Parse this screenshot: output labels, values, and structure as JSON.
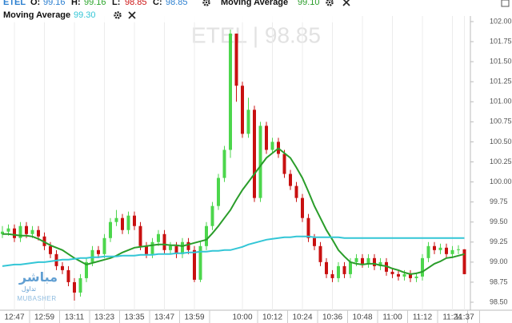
{
  "chart_data": {
    "type": "candlestick",
    "header": {
      "symbol": "ETEL",
      "ohlc": [
        {
          "label": "O:",
          "value": 99.16,
          "color": "#2b7fd0"
        },
        {
          "label": "H:",
          "value": 99.16,
          "color": "#2aa52a"
        },
        {
          "label": "L:",
          "value": 98.85,
          "color": "#cc1111"
        },
        {
          "label": "C:",
          "value": 98.85,
          "color": "#2b7fd0"
        }
      ]
    },
    "watermark": "ETEL | 98.85",
    "logo": {
      "arabic": "مباشر",
      "arabic_sub": "تداول",
      "latin": "MUBASHER"
    },
    "categories": [
      null,
      null,
      "12:47",
      null,
      null,
      null,
      null,
      "12:59",
      null,
      null,
      null,
      null,
      "13:11",
      null,
      null,
      null,
      null,
      "13:23",
      null,
      null,
      null,
      null,
      "13:35",
      null,
      null,
      null,
      null,
      "13:47",
      null,
      null,
      null,
      null,
      "13:59",
      null,
      null,
      null,
      null,
      null,
      null,
      null,
      "10:00",
      null,
      null,
      null,
      null,
      "10:12",
      null,
      null,
      null,
      null,
      "10:24",
      null,
      null,
      null,
      null,
      "10:36",
      null,
      null,
      null,
      null,
      "10:48",
      null,
      null,
      null,
      null,
      "11:00",
      null,
      null,
      null,
      null,
      "11:12",
      null,
      null,
      null,
      null,
      "11:24",
      null,
      "11:37"
    ],
    "candles": [
      [
        99.35,
        99.45,
        99.3,
        99.38
      ],
      [
        99.38,
        99.47,
        99.33,
        99.42
      ],
      [
        99.42,
        99.47,
        99.25,
        99.3
      ],
      [
        99.3,
        99.5,
        99.25,
        99.45
      ],
      [
        99.45,
        99.5,
        99.3,
        99.35
      ],
      [
        99.35,
        99.45,
        99.3,
        99.4
      ],
      [
        99.4,
        99.45,
        99.27,
        99.32
      ],
      [
        99.32,
        99.37,
        99.15,
        99.2
      ],
      [
        99.2,
        99.25,
        99.05,
        99.1
      ],
      [
        99.1,
        99.15,
        98.9,
        98.95
      ],
      [
        98.95,
        99.0,
        98.85,
        98.9
      ],
      [
        98.9,
        98.95,
        98.7,
        98.75
      ],
      [
        98.75,
        98.8,
        98.52,
        98.62
      ],
      [
        98.62,
        98.85,
        98.57,
        98.8
      ],
      [
        98.8,
        99.05,
        98.75,
        99.0
      ],
      [
        99.0,
        99.2,
        98.95,
        99.15
      ],
      [
        99.15,
        99.2,
        99.05,
        99.1
      ],
      [
        99.1,
        99.35,
        99.05,
        99.3
      ],
      [
        99.3,
        99.55,
        99.25,
        99.5
      ],
      [
        99.5,
        99.65,
        99.45,
        99.55
      ],
      [
        99.55,
        99.6,
        99.35,
        99.4
      ],
      [
        99.4,
        99.63,
        99.35,
        99.58
      ],
      [
        99.58,
        99.63,
        99.4,
        99.45
      ],
      [
        99.45,
        99.5,
        99.15,
        99.2
      ],
      [
        99.2,
        99.25,
        99.05,
        99.1
      ],
      [
        99.1,
        99.3,
        99.05,
        99.25
      ],
      [
        99.25,
        99.4,
        99.2,
        99.35
      ],
      [
        99.35,
        99.4,
        99.1,
        99.15
      ],
      [
        99.15,
        99.25,
        99.1,
        99.2
      ],
      [
        99.2,
        99.25,
        99.05,
        99.1
      ],
      [
        99.1,
        99.3,
        99.05,
        99.25
      ],
      [
        99.25,
        99.3,
        99.1,
        99.15
      ],
      [
        99.15,
        99.2,
        98.75,
        98.78
      ],
      [
        98.78,
        99.25,
        98.75,
        99.2
      ],
      [
        99.2,
        99.5,
        99.15,
        99.45
      ],
      [
        99.45,
        99.75,
        99.4,
        99.7
      ],
      [
        99.7,
        100.1,
        99.65,
        100.05
      ],
      [
        100.05,
        100.45,
        100.0,
        100.4
      ],
      [
        100.4,
        101.9,
        100.3,
        101.85
      ],
      [
        101.85,
        101.85,
        101.0,
        101.2
      ],
      [
        101.2,
        101.25,
        100.55,
        100.6
      ],
      [
        100.6,
        101.05,
        100.55,
        100.9
      ],
      [
        100.9,
        100.95,
        99.75,
        99.8
      ],
      [
        99.8,
        100.75,
        99.75,
        100.7
      ],
      [
        100.7,
        100.75,
        100.35,
        100.4
      ],
      [
        100.4,
        100.55,
        100.35,
        100.5
      ],
      [
        100.5,
        100.55,
        100.3,
        100.35
      ],
      [
        100.35,
        100.4,
        100.05,
        100.1
      ],
      [
        100.1,
        100.15,
        99.9,
        99.95
      ],
      [
        99.95,
        100.0,
        99.75,
        99.8
      ],
      [
        99.8,
        99.85,
        99.5,
        99.55
      ],
      [
        99.55,
        99.6,
        99.25,
        99.3
      ],
      [
        99.3,
        99.35,
        99.15,
        99.2
      ],
      [
        99.2,
        99.25,
        98.95,
        99.0
      ],
      [
        99.0,
        99.05,
        98.8,
        98.85
      ],
      [
        98.85,
        98.9,
        98.75,
        98.8
      ],
      [
        98.8,
        99.0,
        98.75,
        98.95
      ],
      [
        98.95,
        99.0,
        98.8,
        98.85
      ],
      [
        98.85,
        99.05,
        98.8,
        99.0
      ],
      [
        99.0,
        99.1,
        98.95,
        99.05
      ],
      [
        99.05,
        99.1,
        98.93,
        98.98
      ],
      [
        98.98,
        99.1,
        98.93,
        99.05
      ],
      [
        99.05,
        99.1,
        98.9,
        98.95
      ],
      [
        98.95,
        99.05,
        98.9,
        99.0
      ],
      [
        99.0,
        99.05,
        98.83,
        98.88
      ],
      [
        98.88,
        98.93,
        98.8,
        98.85
      ],
      [
        98.85,
        98.9,
        98.77,
        98.82
      ],
      [
        98.82,
        98.9,
        98.77,
        98.85
      ],
      [
        98.85,
        98.9,
        98.75,
        98.8
      ],
      [
        98.8,
        98.87,
        98.75,
        98.82
      ],
      [
        98.82,
        99.1,
        98.77,
        99.05
      ],
      [
        99.05,
        99.25,
        99.0,
        99.2
      ],
      [
        99.2,
        99.25,
        99.1,
        99.15
      ],
      [
        99.15,
        99.23,
        99.1,
        99.18
      ],
      [
        99.18,
        99.23,
        99.05,
        99.1
      ],
      [
        99.1,
        99.2,
        99.05,
        99.15
      ],
      [
        99.15,
        99.21,
        99.1,
        99.16
      ],
      [
        99.16,
        99.16,
        98.85,
        98.85
      ]
    ],
    "up_color": "#4cd64c",
    "down_color": "#c81010",
    "series": [
      {
        "name": "Moving Average",
        "color": "#2a9d2a",
        "legend_value": "99.10",
        "values": [
          99.35,
          99.35,
          99.34,
          99.33,
          99.33,
          99.32,
          99.29,
          99.25,
          99.21,
          99.18,
          99.15,
          99.1,
          99.05,
          99.01,
          98.97,
          98.99,
          99.01,
          99.03,
          99.05,
          99.08,
          99.12,
          99.15,
          99.18,
          99.19,
          99.2,
          99.21,
          99.22,
          99.22,
          99.21,
          99.21,
          99.2,
          99.22,
          99.24,
          99.26,
          99.28,
          99.36,
          99.45,
          99.55,
          99.65,
          99.78,
          99.9,
          100.0,
          100.1,
          100.2,
          100.3,
          100.36,
          100.42,
          100.36,
          100.3,
          100.18,
          100.05,
          99.88,
          99.7,
          99.55,
          99.4,
          99.28,
          99.15,
          99.07,
          99.0,
          98.98,
          98.97,
          98.98,
          98.98,
          98.96,
          98.95,
          98.92,
          98.9,
          98.87,
          98.85,
          98.86,
          98.88,
          98.93,
          98.98,
          99.01,
          99.05,
          99.06,
          99.08,
          99.1
        ]
      },
      {
        "name": "Moving Average",
        "color": "#33c6d6",
        "legend_value": "99.30",
        "values": [
          98.95,
          98.96,
          98.97,
          98.97,
          98.98,
          98.99,
          99.0,
          99.0,
          99.01,
          99.02,
          99.03,
          99.03,
          99.04,
          99.05,
          99.05,
          99.06,
          99.06,
          99.07,
          99.07,
          99.07,
          99.08,
          99.08,
          99.08,
          99.09,
          99.09,
          99.09,
          99.1,
          99.1,
          99.1,
          99.11,
          99.11,
          99.12,
          99.12,
          99.13,
          99.13,
          99.14,
          99.14,
          99.15,
          99.15,
          99.17,
          99.19,
          99.22,
          99.24,
          99.26,
          99.28,
          99.29,
          99.3,
          99.31,
          99.31,
          99.32,
          99.32,
          99.32,
          99.31,
          99.31,
          99.31,
          99.31,
          99.31,
          99.3,
          99.3,
          99.3,
          99.3,
          99.3,
          99.3,
          99.3,
          99.3,
          99.3,
          99.3,
          99.3,
          99.3,
          99.3,
          99.3,
          99.3,
          99.3,
          99.3,
          99.3,
          99.3,
          99.3,
          99.3
        ]
      }
    ],
    "ylim": [
      98.5,
      102
    ],
    "yticks": [
      {
        "value": 102,
        "label": "102.00"
      },
      101.75,
      {
        "value": 101.5,
        "label": "101.50"
      },
      101.25,
      {
        "value": 101,
        "label": "101.00"
      },
      100.75,
      {
        "value": 100.5,
        "label": "100.50"
      },
      100.25,
      {
        "value": 100,
        "label": "100.00"
      },
      99.75,
      {
        "value": 99.5,
        "label": "99.50"
      },
      99.25,
      {
        "value": 99,
        "label": "99.00"
      },
      98.75,
      {
        "value": 98.5,
        "label": "98.50"
      }
    ],
    "grid": "x"
  }
}
